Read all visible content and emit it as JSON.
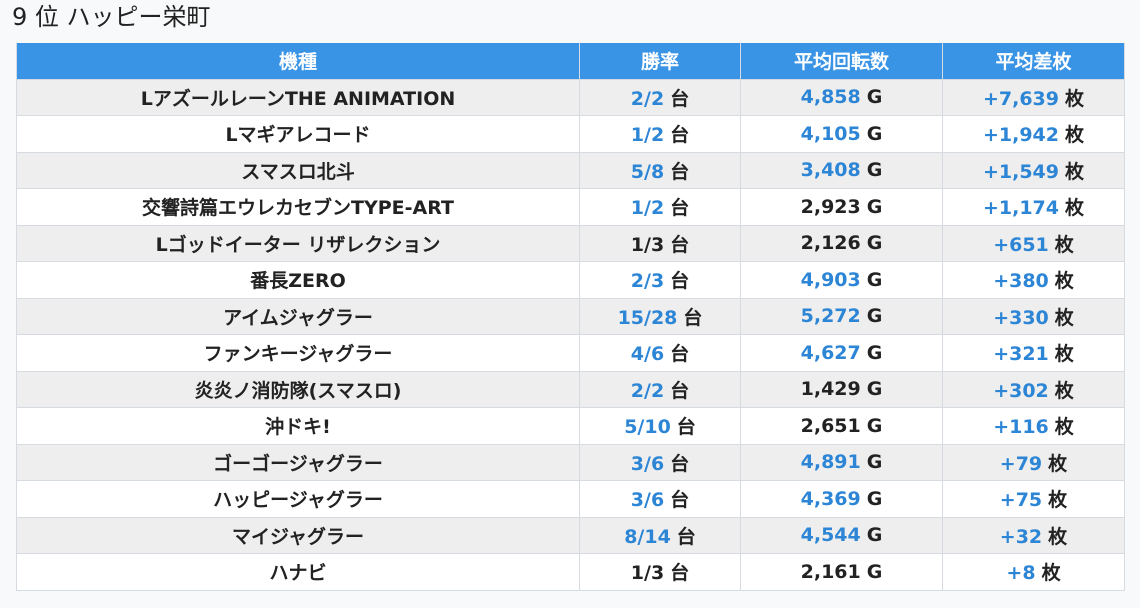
{
  "heading": "9 位 ハッピー栄町",
  "columns": [
    "機種",
    "勝率",
    "平均回転数",
    "平均差枚"
  ],
  "units": {
    "win": "台",
    "spins": "G",
    "diff": "枚"
  },
  "colors": {
    "header_bg": "#3a94e6",
    "highlight_text": "#2d85d6",
    "row_stripe": "#eeeeee"
  },
  "rows": [
    {
      "machine": "LアズールレーンTHE ANIMATION",
      "win": "2/2",
      "win_hl": true,
      "spins": "4,858",
      "spins_hl": true,
      "diff": "+7,639",
      "diff_hl": true
    },
    {
      "machine": "Lマギアレコード",
      "win": "1/2",
      "win_hl": true,
      "spins": "4,105",
      "spins_hl": true,
      "diff": "+1,942",
      "diff_hl": true
    },
    {
      "machine": "スマスロ北斗",
      "win": "5/8",
      "win_hl": true,
      "spins": "3,408",
      "spins_hl": true,
      "diff": "+1,549",
      "diff_hl": true
    },
    {
      "machine": "交響詩篇エウレカセブンTYPE-ART",
      "win": "1/2",
      "win_hl": true,
      "spins": "2,923",
      "spins_hl": false,
      "diff": "+1,174",
      "diff_hl": true
    },
    {
      "machine": "Lゴッドイーター リザレクション",
      "win": "1/3",
      "win_hl": false,
      "spins": "2,126",
      "spins_hl": false,
      "diff": "+651",
      "diff_hl": true
    },
    {
      "machine": "番長ZERO",
      "win": "2/3",
      "win_hl": true,
      "spins": "4,903",
      "spins_hl": true,
      "diff": "+380",
      "diff_hl": true
    },
    {
      "machine": "アイムジャグラー",
      "win": "15/28",
      "win_hl": true,
      "spins": "5,272",
      "spins_hl": true,
      "diff": "+330",
      "diff_hl": true
    },
    {
      "machine": "ファンキージャグラー",
      "win": "4/6",
      "win_hl": true,
      "spins": "4,627",
      "spins_hl": true,
      "diff": "+321",
      "diff_hl": true
    },
    {
      "machine": "炎炎ノ消防隊(スマスロ)",
      "win": "2/2",
      "win_hl": true,
      "spins": "1,429",
      "spins_hl": false,
      "diff": "+302",
      "diff_hl": true
    },
    {
      "machine": "沖ドキ!",
      "win": "5/10",
      "win_hl": true,
      "spins": "2,651",
      "spins_hl": false,
      "diff": "+116",
      "diff_hl": true
    },
    {
      "machine": "ゴーゴージャグラー",
      "win": "3/6",
      "win_hl": true,
      "spins": "4,891",
      "spins_hl": true,
      "diff": "+79",
      "diff_hl": true
    },
    {
      "machine": "ハッピージャグラー",
      "win": "3/6",
      "win_hl": true,
      "spins": "4,369",
      "spins_hl": true,
      "diff": "+75",
      "diff_hl": true
    },
    {
      "machine": "マイジャグラー",
      "win": "8/14",
      "win_hl": true,
      "spins": "4,544",
      "spins_hl": true,
      "diff": "+32",
      "diff_hl": true
    },
    {
      "machine": "ハナビ",
      "win": "1/3",
      "win_hl": false,
      "spins": "2,161",
      "spins_hl": false,
      "diff": "+8",
      "diff_hl": true
    }
  ]
}
